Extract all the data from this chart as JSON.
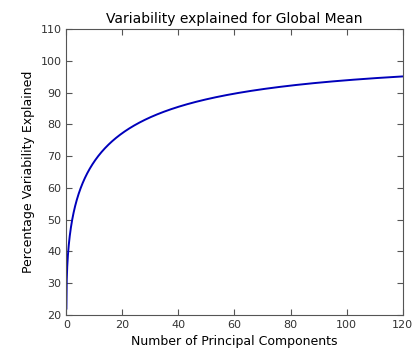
{
  "title": "Variability explained for Global Mean",
  "xlabel": "Number of Principal Components",
  "ylabel": "Percentage Variability Explained",
  "xlim": [
    0,
    120
  ],
  "ylim": [
    20,
    110
  ],
  "xticks": [
    0,
    20,
    40,
    60,
    80,
    100,
    120
  ],
  "yticks": [
    20,
    30,
    40,
    50,
    60,
    70,
    80,
    90,
    100,
    110
  ],
  "line_color": "#0000bb",
  "line_width": 1.4,
  "background_color": "#ffffff",
  "n_components": 120,
  "start_value": 22.0,
  "end_value": 100.0,
  "decay_rate": 0.32,
  "power": 0.45
}
